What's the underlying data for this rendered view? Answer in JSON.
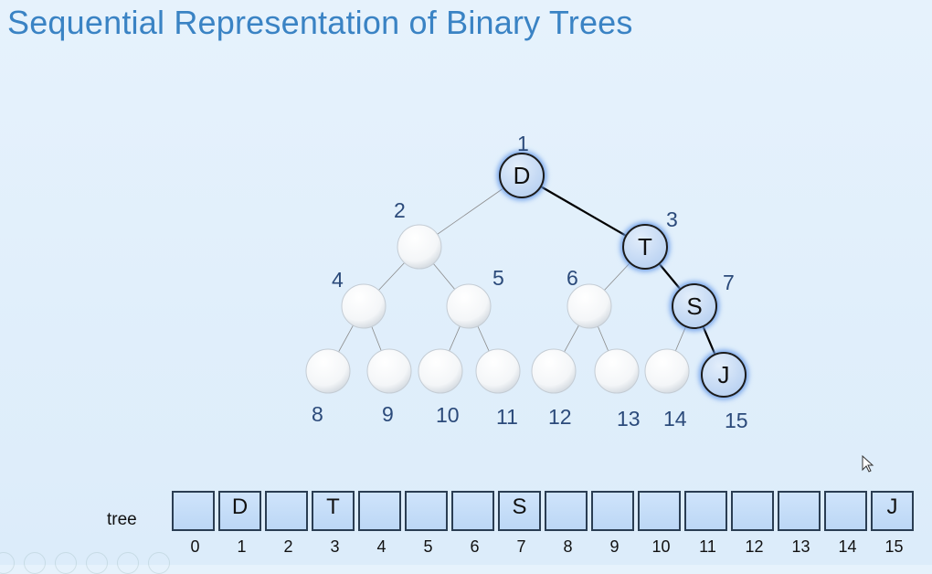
{
  "slide": {
    "title": "Sequential Representation of Binary Trees"
  },
  "tree": {
    "nodes": [
      {
        "index": "1",
        "value": "D",
        "highlighted": true
      },
      {
        "index": "2",
        "value": "",
        "highlighted": false
      },
      {
        "index": "3",
        "value": "T",
        "highlighted": true
      },
      {
        "index": "4",
        "value": "",
        "highlighted": false
      },
      {
        "index": "5",
        "value": "",
        "highlighted": false
      },
      {
        "index": "6",
        "value": "",
        "highlighted": false
      },
      {
        "index": "7",
        "value": "S",
        "highlighted": true
      },
      {
        "index": "8",
        "value": "",
        "highlighted": false
      },
      {
        "index": "9",
        "value": "",
        "highlighted": false
      },
      {
        "index": "10",
        "value": "",
        "highlighted": false
      },
      {
        "index": "11",
        "value": "",
        "highlighted": false
      },
      {
        "index": "12",
        "value": "",
        "highlighted": false
      },
      {
        "index": "13",
        "value": "",
        "highlighted": false
      },
      {
        "index": "14",
        "value": "",
        "highlighted": false
      },
      {
        "index": "15",
        "value": "J",
        "highlighted": true
      }
    ],
    "highlight_path": [
      "1",
      "3",
      "7",
      "15"
    ],
    "colors": {
      "highlight_fill": "#c9def7",
      "highlight_glow": "#6fa0ea",
      "plain_node": "#ffffff",
      "edge_highlight": "#000000",
      "edge_plain": "#8a8a8a"
    }
  },
  "array": {
    "label": "tree",
    "cells": [
      "",
      "D",
      "",
      "T",
      "",
      "",
      "",
      "S",
      "",
      "",
      "",
      "",
      "",
      "",
      "",
      "J"
    ],
    "indices": [
      "0",
      "1",
      "2",
      "3",
      "4",
      "5",
      "6",
      "7",
      "8",
      "9",
      "10",
      "11",
      "12",
      "13",
      "14",
      "15"
    ]
  },
  "ui": {
    "cursor": "mouse-pointer-icon"
  }
}
